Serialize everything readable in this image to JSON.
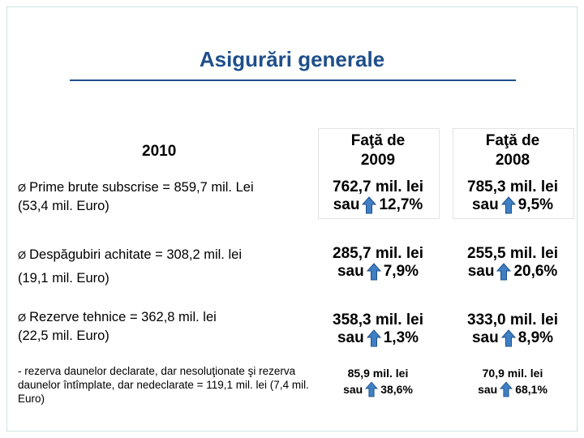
{
  "title": "Asigurări generale",
  "year": "2010",
  "items": [
    {
      "bullet": "Ø",
      "line1": "Prime brute subscrise = 859,7 mil. Lei",
      "line2": "(53,4 mil. Euro)"
    },
    {
      "bullet": "Ø",
      "line1": "Despăgubiri achitate = 308,2 mil. lei",
      "line2": "(19,1 mil. Euro)"
    },
    {
      "bullet": "Ø",
      "line1": "Rezerve tehnice = 362,8 mil. lei",
      "line2": "(22,5 mil. Euro)"
    }
  ],
  "sub_note": "- rezerva daunelor declarate, dar nesoluţionate şi rezerva daunelor întîmplate, dar nedeclarate = 119,1 mil. lei (7,4 mil. Euro)",
  "columns": [
    {
      "header1": "Faţă de",
      "header2": "2009",
      "rows": [
        {
          "value": "762,7 mil. lei",
          "sau": "sau",
          "pct": "12,7%"
        },
        {
          "value": "285,7 mil. lei",
          "sau": "sau",
          "pct": "7,9%"
        },
        {
          "value": "358,3 mil. lei",
          "sau": "sau",
          "pct": "1,3%"
        },
        {
          "value": "85,9 mil. lei",
          "sau": "sau",
          "pct": "38,6%"
        }
      ]
    },
    {
      "header1": "Faţă de",
      "header2": "2008",
      "rows": [
        {
          "value": "785,3 mil. lei",
          "sau": "sau",
          "pct": "9,5%"
        },
        {
          "value": "255,5 mil. lei",
          "sau": "sau",
          "pct": "20,6%"
        },
        {
          "value": "333,0 mil. lei",
          "sau": "sau",
          "pct": "8,9%"
        },
        {
          "value": "70,9 mil. lei",
          "sau": "sau",
          "pct": "68,1%"
        }
      ]
    }
  ],
  "colors": {
    "title": "#1f4f8a",
    "arrow_fill": "#3f7fc4",
    "arrow_stroke": "#1f4f8a"
  }
}
